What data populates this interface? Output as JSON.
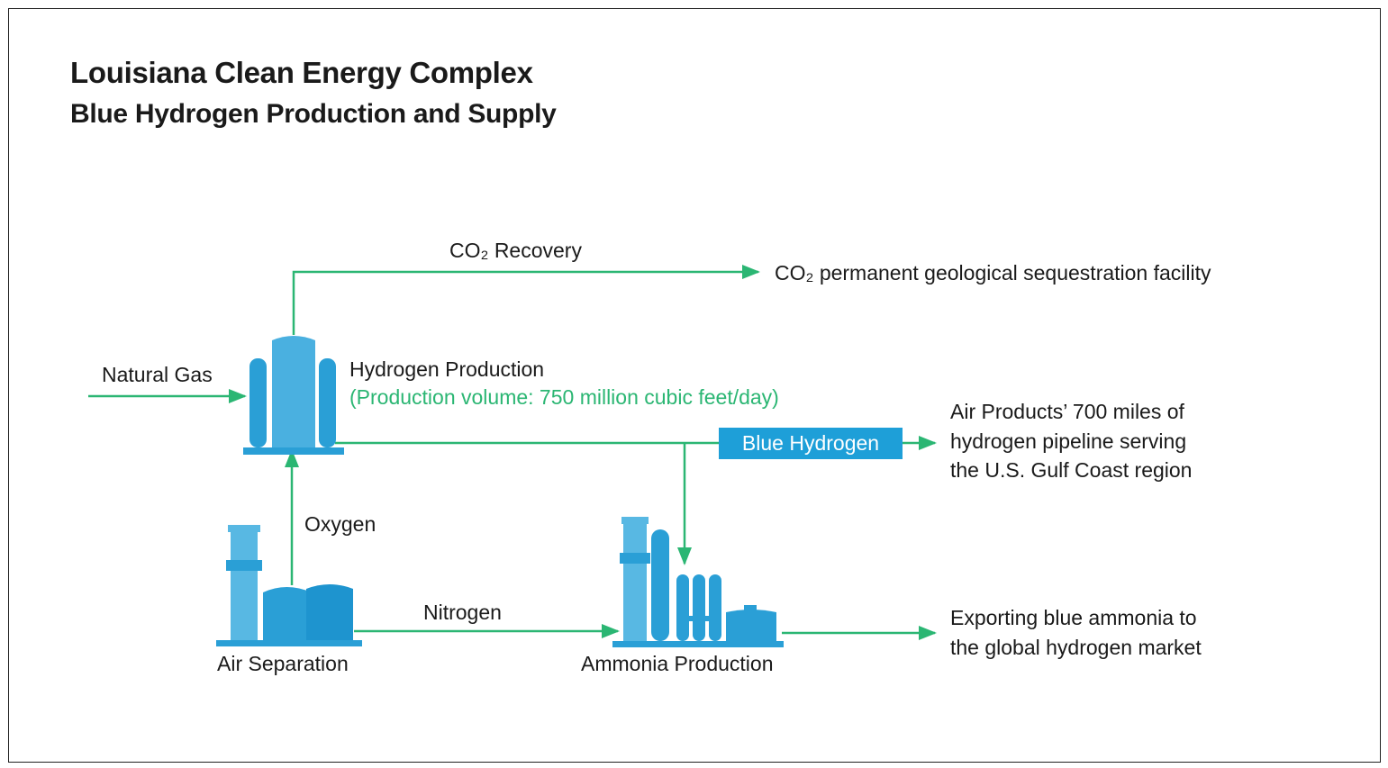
{
  "title": "Louisiana Clean Energy Complex",
  "subtitle": "Blue Hydrogen Production and Supply",
  "colors": {
    "flow": "#2bb673",
    "equipment": "#2a9fd6",
    "equipment_light": "#58b8e3",
    "box": "#1e9fd8"
  },
  "flows": {
    "co2_recovery": "CO₂ Recovery",
    "co2_destination": "CO₂ permanent geological sequestration facility",
    "natural_gas": "Natural Gas",
    "oxygen": "Oxygen",
    "nitrogen": "Nitrogen",
    "blue_hydrogen": "Blue Hydrogen"
  },
  "nodes": {
    "hydrogen_production": "Hydrogen Production",
    "production_volume": "(Production volume: 750 million cubic feet/day)",
    "air_separation": "Air Separation",
    "ammonia_production": "Ammonia Production"
  },
  "outputs": {
    "pipeline": [
      "Air Products’ 700 miles of",
      "hydrogen pipeline serving",
      "the U.S. Gulf Coast region"
    ],
    "export": [
      "Exporting blue ammonia to",
      "the global hydrogen market"
    ]
  },
  "icons": [
    "hydrogen-plant-icon",
    "air-separation-plant-icon",
    "ammonia-plant-icon"
  ]
}
